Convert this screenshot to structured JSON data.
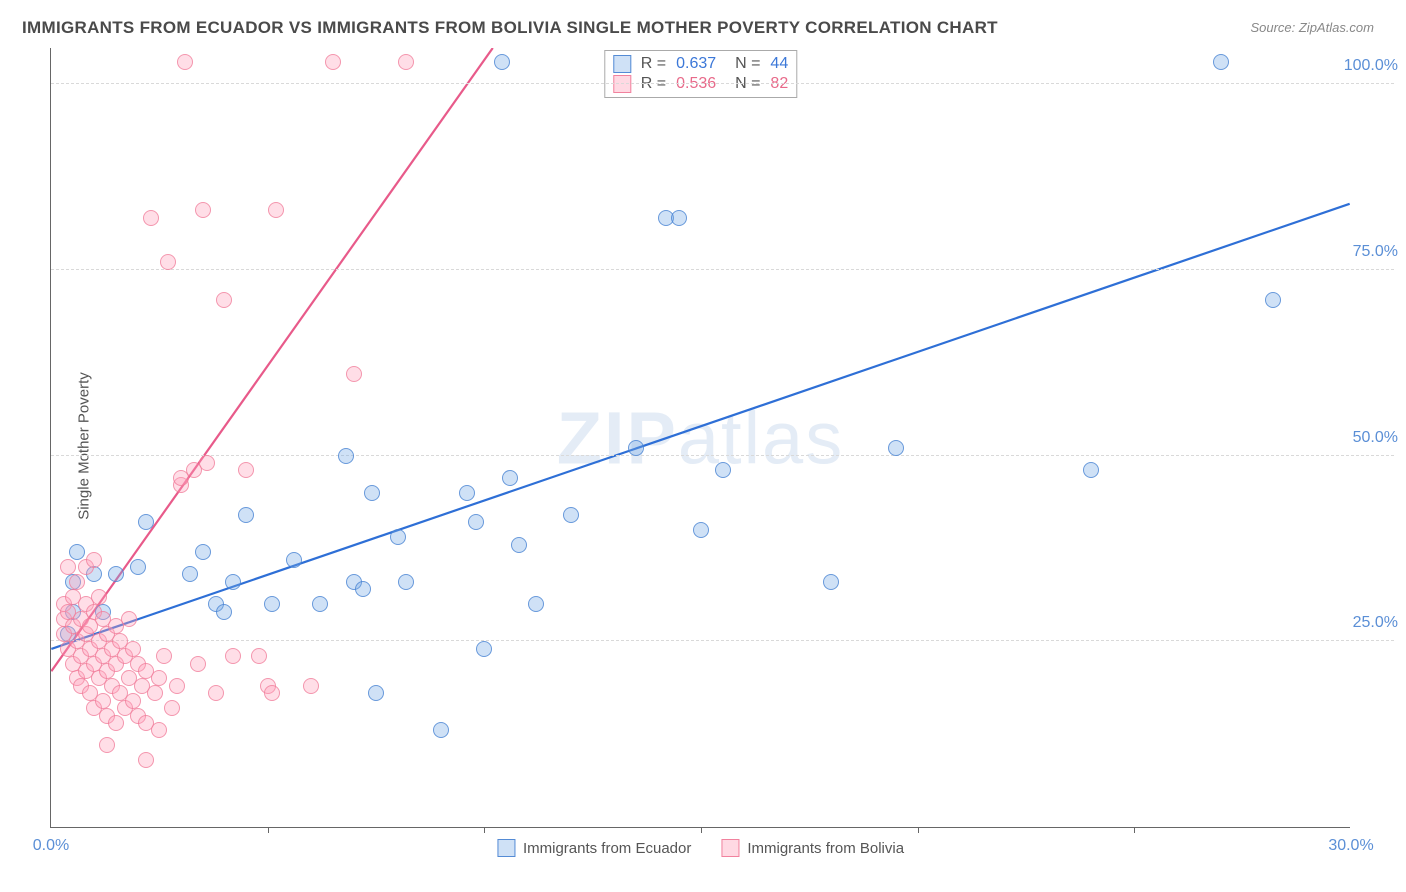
{
  "title": "IMMIGRANTS FROM ECUADOR VS IMMIGRANTS FROM BOLIVIA SINGLE MOTHER POVERTY CORRELATION CHART",
  "source_prefix": "Source: ",
  "source_name": "ZipAtlas.com",
  "watermark": {
    "bold": "ZIP",
    "rest": "atlas"
  },
  "ylabel": "Single Mother Poverty",
  "chart": {
    "type": "scatter",
    "xlim": [
      0,
      30
    ],
    "ylim": [
      0,
      105
    ],
    "x_ticks": [
      0,
      30
    ],
    "x_tick_labels": [
      "0.0%",
      "30.0%"
    ],
    "x_tick_minor": [
      5,
      10,
      15,
      20,
      25
    ],
    "y_ticks": [
      25,
      50,
      75,
      100
    ],
    "y_tick_labels": [
      "25.0%",
      "50.0%",
      "75.0%",
      "100.0%"
    ],
    "grid_color": "#d9d9d9",
    "background_color": "#ffffff",
    "axis_color": "#666666",
    "tick_label_color": "#5b8fd6",
    "series": [
      {
        "name": "Immigrants from Ecuador",
        "marker_color_fill": "rgba(118,168,228,0.35)",
        "marker_color_stroke": "rgba(70,130,210,0.75)",
        "marker_size": 16,
        "line_color": "#2e6fd6",
        "line_width": 2.2,
        "R": "0.637",
        "N": "44",
        "trend": {
          "x1": 0,
          "y1": 24,
          "x2": 30,
          "y2": 84
        },
        "points": [
          [
            0.5,
            29
          ],
          [
            0.5,
            33
          ],
          [
            0.6,
            37
          ],
          [
            1.0,
            34
          ],
          [
            1.2,
            29
          ],
          [
            1.5,
            34
          ],
          [
            2.0,
            35
          ],
          [
            2.2,
            41
          ],
          [
            3.2,
            34
          ],
          [
            3.5,
            37
          ],
          [
            3.8,
            30
          ],
          [
            4.0,
            29
          ],
          [
            4.2,
            33
          ],
          [
            4.5,
            42
          ],
          [
            5.1,
            30
          ],
          [
            5.6,
            36
          ],
          [
            6.2,
            30
          ],
          [
            6.8,
            50
          ],
          [
            7.0,
            33
          ],
          [
            7.2,
            32
          ],
          [
            7.4,
            45
          ],
          [
            7.5,
            18
          ],
          [
            8.0,
            39
          ],
          [
            8.2,
            33
          ],
          [
            9.0,
            13
          ],
          [
            9.6,
            45
          ],
          [
            9.8,
            41
          ],
          [
            10.0,
            24
          ],
          [
            10.4,
            103
          ],
          [
            10.6,
            47
          ],
          [
            10.8,
            38
          ],
          [
            11.2,
            30
          ],
          [
            12.0,
            42
          ],
          [
            13.5,
            51
          ],
          [
            14.2,
            82
          ],
          [
            14.5,
            82
          ],
          [
            15.0,
            40
          ],
          [
            15.5,
            48
          ],
          [
            18.0,
            33
          ],
          [
            19.5,
            51
          ],
          [
            24.0,
            48
          ],
          [
            27.0,
            103
          ],
          [
            28.2,
            71
          ],
          [
            0.4,
            26
          ]
        ]
      },
      {
        "name": "Immigrants from Bolivia",
        "marker_color_fill": "rgba(255,160,185,0.35)",
        "marker_color_stroke": "rgba(240,120,150,0.7)",
        "marker_size": 16,
        "line_color": "#e85a8a",
        "line_width": 2.2,
        "R": "0.536",
        "N": "82",
        "trend": {
          "x1": 0,
          "y1": 21,
          "x2": 10.2,
          "y2": 105
        },
        "points": [
          [
            0.3,
            28
          ],
          [
            0.3,
            26
          ],
          [
            0.3,
            30
          ],
          [
            0.4,
            24
          ],
          [
            0.4,
            29
          ],
          [
            0.4,
            35
          ],
          [
            0.5,
            22
          ],
          [
            0.5,
            27
          ],
          [
            0.5,
            31
          ],
          [
            0.6,
            20
          ],
          [
            0.6,
            25
          ],
          [
            0.6,
            33
          ],
          [
            0.7,
            19
          ],
          [
            0.7,
            23
          ],
          [
            0.7,
            28
          ],
          [
            0.8,
            21
          ],
          [
            0.8,
            26
          ],
          [
            0.8,
            30
          ],
          [
            0.8,
            35
          ],
          [
            0.9,
            18
          ],
          [
            0.9,
            24
          ],
          [
            0.9,
            27
          ],
          [
            1.0,
            16
          ],
          [
            1.0,
            22
          ],
          [
            1.0,
            29
          ],
          [
            1.0,
            36
          ],
          [
            1.1,
            20
          ],
          [
            1.1,
            25
          ],
          [
            1.1,
            31
          ],
          [
            1.2,
            17
          ],
          [
            1.2,
            23
          ],
          [
            1.2,
            28
          ],
          [
            1.3,
            15
          ],
          [
            1.3,
            21
          ],
          [
            1.3,
            26
          ],
          [
            1.4,
            19
          ],
          [
            1.4,
            24
          ],
          [
            1.5,
            14
          ],
          [
            1.5,
            22
          ],
          [
            1.5,
            27
          ],
          [
            1.6,
            18
          ],
          [
            1.6,
            25
          ],
          [
            1.7,
            16
          ],
          [
            1.7,
            23
          ],
          [
            1.8,
            20
          ],
          [
            1.8,
            28
          ],
          [
            1.9,
            17
          ],
          [
            1.9,
            24
          ],
          [
            2.0,
            15
          ],
          [
            2.0,
            22
          ],
          [
            2.1,
            19
          ],
          [
            2.2,
            14
          ],
          [
            2.2,
            21
          ],
          [
            2.3,
            82
          ],
          [
            2.4,
            18
          ],
          [
            2.5,
            13
          ],
          [
            2.5,
            20
          ],
          [
            2.6,
            23
          ],
          [
            2.7,
            76
          ],
          [
            2.8,
            16
          ],
          [
            2.9,
            19
          ],
          [
            3.0,
            46
          ],
          [
            3.0,
            47
          ],
          [
            3.1,
            103
          ],
          [
            3.3,
            48
          ],
          [
            3.4,
            22
          ],
          [
            3.5,
            83
          ],
          [
            3.6,
            49
          ],
          [
            3.8,
            18
          ],
          [
            4.0,
            71
          ],
          [
            4.2,
            23
          ],
          [
            4.5,
            48
          ],
          [
            4.8,
            23
          ],
          [
            5.0,
            19
          ],
          [
            5.1,
            18
          ],
          [
            5.2,
            83
          ],
          [
            6.0,
            19
          ],
          [
            6.5,
            103
          ],
          [
            7.0,
            61
          ],
          [
            8.2,
            103
          ],
          [
            2.2,
            9
          ],
          [
            1.3,
            11
          ]
        ]
      }
    ],
    "legend_bottom": [
      {
        "swatch": "blue",
        "label_key": "chart.series.0.name"
      },
      {
        "swatch": "pink",
        "label_key": "chart.series.1.name"
      }
    ]
  }
}
